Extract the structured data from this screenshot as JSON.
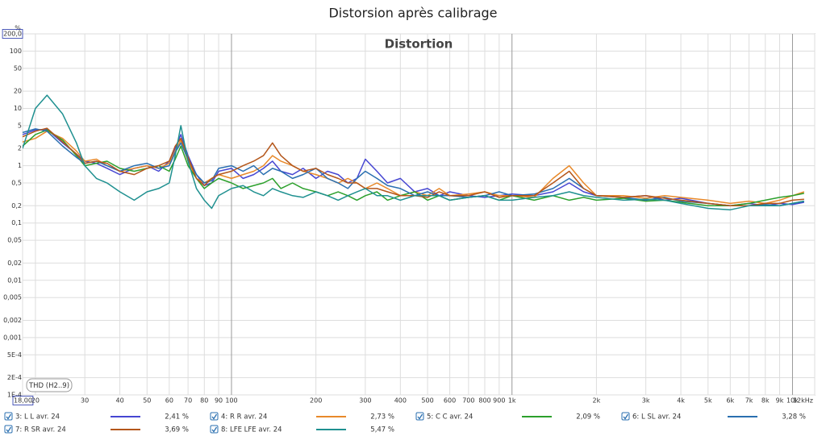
{
  "chart_data": {
    "type": "line",
    "title": "Distorsion après calibrage",
    "plot_title": "Distortion",
    "y_unit": "%",
    "annotation": "THD (H2..9)",
    "xscale": "log",
    "yscale": "log",
    "grid": true,
    "xlim": [
      18,
      12000
    ],
    "ylim": [
      0.0001,
      200
    ],
    "xticks": [
      {
        "value": 18,
        "label": "18,00"
      },
      20,
      30,
      40,
      50,
      60,
      70,
      80,
      90,
      100,
      200,
      300,
      400,
      500,
      600,
      700,
      800,
      900,
      {
        "value": 1000,
        "label": "1k"
      },
      {
        "value": 2000,
        "label": "2k"
      },
      {
        "value": 3000,
        "label": "3k"
      },
      {
        "value": 4000,
        "label": "4k"
      },
      {
        "value": 5000,
        "label": "5k"
      },
      {
        "value": 6000,
        "label": "6k"
      },
      {
        "value": 7000,
        "label": "7k"
      },
      {
        "value": 8000,
        "label": "8k"
      },
      {
        "value": 9000,
        "label": "9k"
      },
      {
        "value": 10000,
        "label": "10k"
      },
      {
        "value": 12000,
        "label": "12kHz"
      }
    ],
    "yticks": [
      {
        "value": 200,
        "label": "200,0"
      },
      100,
      50,
      20,
      10,
      5,
      2,
      1,
      {
        "value": 0.5,
        "label": "0,5"
      },
      {
        "value": 0.2,
        "label": "0,2"
      },
      {
        "value": 0.1,
        "label": "0,1"
      },
      {
        "value": 0.05,
        "label": "0,05"
      },
      {
        "value": 0.02,
        "label": "0,02"
      },
      {
        "value": 0.01,
        "label": "0,01"
      },
      {
        "value": 0.005,
        "label": "0,005"
      },
      {
        "value": 0.002,
        "label": "0,002"
      },
      {
        "value": 0.001,
        "label": "0,001"
      },
      {
        "value": 0.0005,
        "label": "5E-4"
      },
      {
        "value": 0.0002,
        "label": "2E-4"
      },
      {
        "value": 0.0001,
        "label": "1E-4"
      }
    ],
    "x": [
      18,
      20,
      22,
      25,
      28,
      30,
      33,
      36,
      40,
      45,
      50,
      55,
      60,
      63,
      66,
      70,
      75,
      80,
      85,
      90,
      100,
      110,
      120,
      130,
      140,
      150,
      165,
      180,
      200,
      220,
      240,
      260,
      280,
      300,
      330,
      360,
      400,
      450,
      500,
      550,
      600,
      700,
      800,
      900,
      1000,
      1200,
      1400,
      1600,
      1800,
      2000,
      2500,
      3000,
      3500,
      4000,
      5000,
      6000,
      7000,
      8000,
      9000,
      10000,
      11000
    ],
    "series": [
      {
        "name": "3: L L avr. 24",
        "color": "#4646d2",
        "thd": {
          "value": 2.41,
          "label": "2,41 %"
        },
        "values": [
          3.5,
          4.2,
          4.3,
          2.5,
          1.6,
          1.2,
          1.1,
          0.9,
          0.7,
          0.9,
          1.0,
          0.8,
          1.2,
          2.0,
          3.5,
          1.5,
          0.7,
          0.45,
          0.5,
          0.8,
          0.9,
          0.6,
          0.7,
          0.9,
          1.2,
          0.8,
          0.7,
          0.9,
          0.6,
          0.8,
          0.7,
          0.5,
          0.6,
          1.3,
          0.8,
          0.5,
          0.6,
          0.35,
          0.4,
          0.3,
          0.35,
          0.3,
          0.28,
          0.3,
          0.32,
          0.3,
          0.35,
          0.5,
          0.35,
          0.3,
          0.28,
          0.3,
          0.25,
          0.27,
          0.22,
          0.2,
          0.22,
          0.2,
          0.22,
          0.21,
          0.23
        ]
      },
      {
        "name": "4: R R avr. 24",
        "color": "#e8892a",
        "thd": {
          "value": 2.73,
          "label": "2,73 %"
        },
        "values": [
          2.6,
          3.0,
          4.0,
          3.0,
          1.8,
          1.2,
          1.3,
          1.0,
          0.8,
          0.9,
          1.0,
          0.9,
          1.1,
          1.8,
          2.8,
          1.2,
          0.6,
          0.5,
          0.6,
          0.7,
          0.6,
          0.7,
          0.8,
          1.0,
          1.5,
          1.2,
          1.0,
          0.8,
          0.7,
          0.6,
          0.5,
          0.6,
          0.5,
          0.4,
          0.5,
          0.4,
          0.3,
          0.35,
          0.3,
          0.4,
          0.3,
          0.32,
          0.35,
          0.3,
          0.3,
          0.28,
          0.6,
          1.0,
          0.5,
          0.3,
          0.3,
          0.27,
          0.3,
          0.28,
          0.25,
          0.22,
          0.24,
          0.22,
          0.25,
          0.3,
          0.35
        ]
      },
      {
        "name": "5: C C avr. 24",
        "color": "#2ca02c",
        "thd": {
          "value": 2.09,
          "label": "2,09 %"
        },
        "values": [
          2.2,
          3.5,
          4.2,
          2.8,
          1.5,
          1.0,
          1.1,
          1.2,
          0.9,
          0.8,
          0.9,
          1.0,
          0.8,
          1.3,
          2.2,
          1.0,
          0.6,
          0.4,
          0.5,
          0.6,
          0.5,
          0.4,
          0.45,
          0.5,
          0.6,
          0.4,
          0.5,
          0.4,
          0.35,
          0.3,
          0.35,
          0.3,
          0.25,
          0.3,
          0.35,
          0.25,
          0.3,
          0.35,
          0.25,
          0.3,
          0.25,
          0.28,
          0.3,
          0.25,
          0.3,
          0.25,
          0.3,
          0.25,
          0.28,
          0.25,
          0.27,
          0.24,
          0.25,
          0.23,
          0.2,
          0.2,
          0.22,
          0.25,
          0.28,
          0.3,
          0.33
        ]
      },
      {
        "name": "6: L SL avr. 24",
        "color": "#2a6fb0",
        "thd": {
          "value": 3.28,
          "label": "3,28 %"
        },
        "values": [
          3.8,
          4.4,
          4.0,
          2.2,
          1.4,
          1.1,
          1.2,
          1.0,
          0.8,
          1.0,
          1.1,
          0.9,
          1.0,
          1.7,
          2.5,
          1.3,
          0.7,
          0.5,
          0.55,
          0.9,
          1.0,
          0.8,
          1.0,
          0.7,
          0.9,
          0.8,
          0.6,
          0.7,
          0.9,
          0.6,
          0.5,
          0.4,
          0.6,
          0.8,
          0.6,
          0.45,
          0.4,
          0.3,
          0.35,
          0.3,
          0.3,
          0.28,
          0.3,
          0.35,
          0.3,
          0.32,
          0.4,
          0.6,
          0.4,
          0.3,
          0.28,
          0.25,
          0.28,
          0.24,
          0.22,
          0.2,
          0.2,
          0.21,
          0.2,
          0.22,
          0.24
        ]
      },
      {
        "name": "7: R SR avr. 24",
        "color": "#b4561a",
        "thd": {
          "value": 3.69,
          "label": "3,69 %"
        },
        "values": [
          3.2,
          4.0,
          4.5,
          2.6,
          1.6,
          1.1,
          1.2,
          1.1,
          0.8,
          0.7,
          0.9,
          1.0,
          1.2,
          2.2,
          3.0,
          1.4,
          0.6,
          0.45,
          0.6,
          0.7,
          0.8,
          1.0,
          1.2,
          1.5,
          2.5,
          1.5,
          1.0,
          0.8,
          0.9,
          0.7,
          0.6,
          0.5,
          0.5,
          0.4,
          0.4,
          0.35,
          0.3,
          0.3,
          0.28,
          0.35,
          0.3,
          0.3,
          0.35,
          0.28,
          0.3,
          0.3,
          0.5,
          0.8,
          0.4,
          0.3,
          0.28,
          0.3,
          0.27,
          0.25,
          0.22,
          0.2,
          0.2,
          0.22,
          0.22,
          0.25,
          0.26
        ]
      },
      {
        "name": "8: LFE LFE avr. 24",
        "color": "#1f9090",
        "thd": {
          "value": 5.47,
          "label": "5,47 %"
        },
        "values": [
          2.0,
          10,
          17,
          8,
          2.5,
          1.0,
          0.6,
          0.5,
          0.35,
          0.25,
          0.35,
          0.4,
          0.5,
          1.5,
          5.0,
          1.2,
          0.4,
          0.25,
          0.18,
          0.3,
          0.4,
          0.45,
          0.35,
          0.3,
          0.4,
          0.35,
          0.3,
          0.28,
          0.35,
          0.3,
          0.25,
          0.3,
          0.35,
          0.4,
          0.3,
          0.3,
          0.25,
          0.3,
          0.3,
          0.3,
          0.25,
          0.28,
          0.3,
          0.25,
          0.25,
          0.28,
          0.3,
          0.35,
          0.3,
          0.28,
          0.25,
          0.26,
          0.25,
          0.22,
          0.18,
          0.17,
          0.2,
          0.2,
          0.2,
          0.22,
          0.24
        ]
      }
    ]
  }
}
